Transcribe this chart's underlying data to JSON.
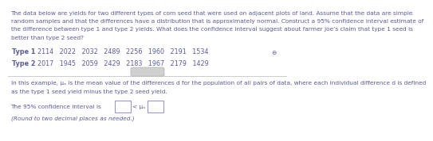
{
  "paragraph1_lines": [
    "The data below are yields for two different types of corn seed that were used on adjacent plots of land. Assume that the data are simple",
    "random samples and that the differences have a distribution that is approximately normal. Construct a 95% confidence interval estimate of",
    "the difference between type 1 and type 2 yields. What does the confidence interval suggest about farmer Joe’s claim that type 1 seed is",
    "better than type 2 seed?"
  ],
  "type1_label": "Type 1",
  "type2_label": "Type 2",
  "type1_values": "2114   2022   2032   2489   2256   1960   2191   1534",
  "type2_values": "2017   1945   2059   2429   2183   1967   2179   1429",
  "paragraph2_lines": [
    "In this example, μₐ is the mean value of the differences d for the population of all pairs of data, where each individual difference d is defined",
    "as the type 1 seed yield minus the type 2 seed yield."
  ],
  "ci_line": "The 95% confidence interval is",
  "ci_symbol": "< μₐ <",
  "round_note": "(Round to two decimal places as needed.)",
  "bg_color": "#ffffff",
  "text_color": "#5a5a9a",
  "divider_color": "#cccccc",
  "box_color": "#9999cc",
  "pill_color": "#d0d0d0",
  "pill_edge_color": "#b0b0b0",
  "font_size_para": 5.3,
  "font_size_table": 5.8,
  "font_size_bottom": 5.3
}
